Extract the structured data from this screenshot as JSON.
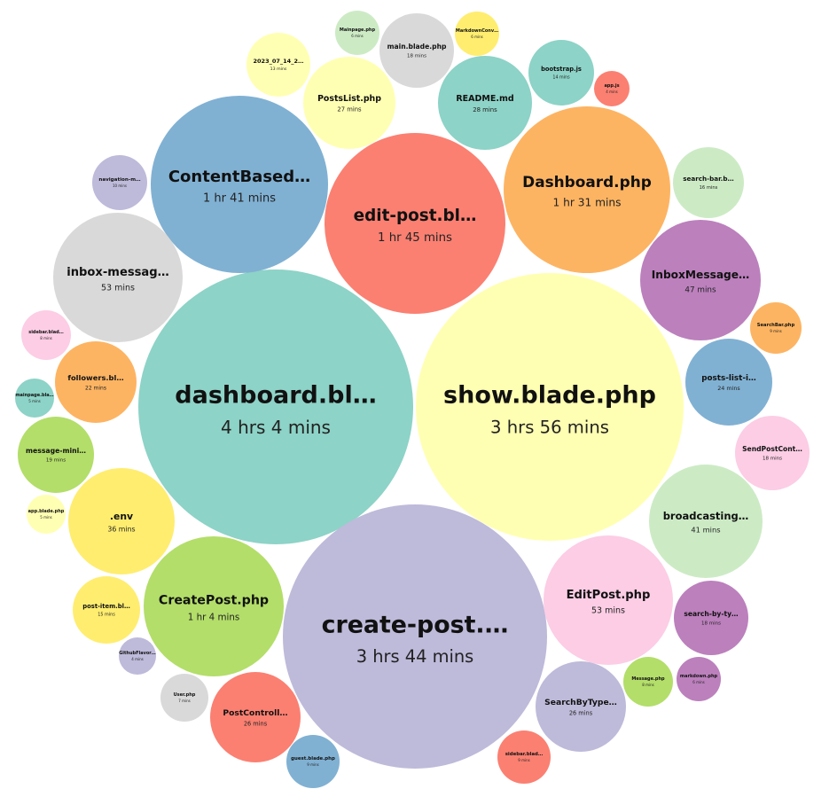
{
  "chart_data": {
    "type": "bubble",
    "title": "",
    "bubbles": [
      {
        "label": "dashboard.bl…",
        "time": "4 hrs 4 mins",
        "minutes": 244,
        "color": "#8dd3c7"
      },
      {
        "label": "show.blade.php",
        "time": "3 hrs 56 mins",
        "minutes": 236,
        "color": "#ffffb3"
      },
      {
        "label": "create-post.…",
        "time": "3 hrs 44 mins",
        "minutes": 224,
        "color": "#bebada"
      },
      {
        "label": "edit-post.bl…",
        "time": "1 hr 45 mins",
        "minutes": 105,
        "color": "#fb8072"
      },
      {
        "label": "ContentBased…",
        "time": "1 hr 41 mins",
        "minutes": 101,
        "color": "#80b1d3"
      },
      {
        "label": "Dashboard.php",
        "time": "1 hr 31 mins",
        "minutes": 91,
        "color": "#fdb462"
      },
      {
        "label": "CreatePost.php",
        "time": "1 hr 4 mins",
        "minutes": 64,
        "color": "#b3de69"
      },
      {
        "label": "inbox-messag…",
        "time": "53 mins",
        "minutes": 53,
        "color": "#d9d9d9"
      },
      {
        "label": "EditPost.php",
        "time": "53 mins",
        "minutes": 53,
        "color": "#fccde5"
      },
      {
        "label": "InboxMessage…",
        "time": "47 mins",
        "minutes": 47,
        "color": "#bc80bd"
      },
      {
        "label": "broadcasting…",
        "time": "41 mins",
        "minutes": 41,
        "color": "#ccebc5"
      },
      {
        "label": ".env",
        "time": "36 mins",
        "minutes": 36,
        "color": "#ffed6f"
      },
      {
        "label": "README.md",
        "time": "28 mins",
        "minutes": 28,
        "color": "#8dd3c7"
      },
      {
        "label": "PostsList.php",
        "time": "27 mins",
        "minutes": 27,
        "color": "#ffffb3"
      },
      {
        "label": "SearchByType…",
        "time": "26 mins",
        "minutes": 26,
        "color": "#bebada"
      },
      {
        "label": "PostControll…",
        "time": "26 mins",
        "minutes": 26,
        "color": "#fb8072"
      },
      {
        "label": "posts-list-i…",
        "time": "24 mins",
        "minutes": 24,
        "color": "#80b1d3"
      },
      {
        "label": "followers.bl…",
        "time": "22 mins",
        "minutes": 22,
        "color": "#fdb462"
      },
      {
        "label": "message-mini…",
        "time": "19 mins",
        "minutes": 19,
        "color": "#b3de69"
      },
      {
        "label": "main.blade.php",
        "time": "18 mins",
        "minutes": 18,
        "color": "#d9d9d9"
      },
      {
        "label": "SendPostCont…",
        "time": "18 mins",
        "minutes": 18,
        "color": "#fccde5"
      },
      {
        "label": "search-by-ty…",
        "time": "18 mins",
        "minutes": 18,
        "color": "#bc80bd"
      },
      {
        "label": "search-bar.b…",
        "time": "16 mins",
        "minutes": 16,
        "color": "#ccebc5"
      },
      {
        "label": "post-item.bl…",
        "time": "15 mins",
        "minutes": 15,
        "color": "#ffed6f"
      },
      {
        "label": "bootstrap.js",
        "time": "14 mins",
        "minutes": 14,
        "color": "#8dd3c7"
      },
      {
        "label": "2023_07_14_2…",
        "time": "13 mins",
        "minutes": 13,
        "color": "#ffffb3"
      },
      {
        "label": "navigation-m…",
        "time": "10 mins",
        "minutes": 10,
        "color": "#bebada"
      },
      {
        "label": "sidebar.blad…",
        "time": "9 mins",
        "minutes": 9,
        "color": "#fb8072"
      },
      {
        "label": "guest.blade.php",
        "time": "9 mins",
        "minutes": 9,
        "color": "#80b1d3"
      },
      {
        "label": "SearchBar.php",
        "time": "9 mins",
        "minutes": 9,
        "color": "#fdb462"
      },
      {
        "label": "Message.php",
        "time": "8 mins",
        "minutes": 8,
        "color": "#b3de69"
      },
      {
        "label": "User.php",
        "time": "7 mins",
        "minutes": 7,
        "color": "#d9d9d9"
      },
      {
        "label": "sidebar.blad…",
        "time": "8 mins",
        "minutes": 8,
        "color": "#fccde5"
      },
      {
        "label": "markdown.php",
        "time": "6 mins",
        "minutes": 6,
        "color": "#bc80bd"
      },
      {
        "label": "Mainpage.php",
        "time": "6 mins",
        "minutes": 6,
        "color": "#ccebc5"
      },
      {
        "label": "MarkdownConv…",
        "time": "6 mins",
        "minutes": 6,
        "color": "#ffed6f"
      },
      {
        "label": "mainpage.bla…",
        "time": "5 mins",
        "minutes": 5,
        "color": "#8dd3c7"
      },
      {
        "label": "app.blade.php",
        "time": "5 mins",
        "minutes": 5,
        "color": "#ffffb3"
      },
      {
        "label": "GithubFlavor…",
        "time": "4 mins",
        "minutes": 4,
        "color": "#bebada"
      },
      {
        "label": "app.js",
        "time": "4 mins",
        "minutes": 4,
        "color": "#fb8072"
      }
    ]
  }
}
